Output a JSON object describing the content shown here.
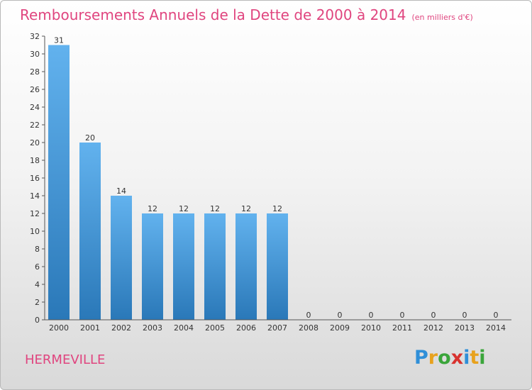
{
  "header": {
    "title": "Remboursements Annuels de la Dette de 2000 à 2014",
    "subtitle": "(en milliers d'€)"
  },
  "footer": {
    "commune": "HERMEVILLE",
    "brand": "Proxiti",
    "brand_letters": [
      {
        "char": "P",
        "color": "#2f8fd8"
      },
      {
        "char": "r",
        "color": "#e8a21d"
      },
      {
        "char": "o",
        "color": "#3aa53a"
      },
      {
        "char": "x",
        "color": "#d8322f"
      },
      {
        "char": "i",
        "color": "#2f8fd8"
      },
      {
        "char": "t",
        "color": "#e8a21d"
      },
      {
        "char": "i",
        "color": "#3aa53a"
      }
    ]
  },
  "colors": {
    "bar_top": "#62b2ee",
    "bar_bottom": "#2a78b8",
    "axis": "#555555",
    "text": "#333333",
    "accent": "#e0457f"
  },
  "chart_data": {
    "type": "bar",
    "categories": [
      "2000",
      "2001",
      "2002",
      "2003",
      "2004",
      "2005",
      "2006",
      "2007",
      "2008",
      "2009",
      "2010",
      "2011",
      "2012",
      "2013",
      "2014"
    ],
    "values": [
      31,
      20,
      14,
      12,
      12,
      12,
      12,
      12,
      0,
      0,
      0,
      0,
      0,
      0,
      0
    ],
    "data_labels": [
      "31",
      "20",
      "14",
      "12",
      "12",
      "12",
      "12",
      "12",
      "0",
      "0",
      "0",
      "0",
      "0",
      "0",
      "0"
    ],
    "ylim": [
      0,
      32
    ],
    "yticks": [
      0,
      2,
      4,
      6,
      8,
      10,
      12,
      14,
      16,
      18,
      20,
      22,
      24,
      26,
      28,
      30,
      32
    ],
    "xlabel": "",
    "ylabel": "",
    "grid": false,
    "legend": "none"
  }
}
